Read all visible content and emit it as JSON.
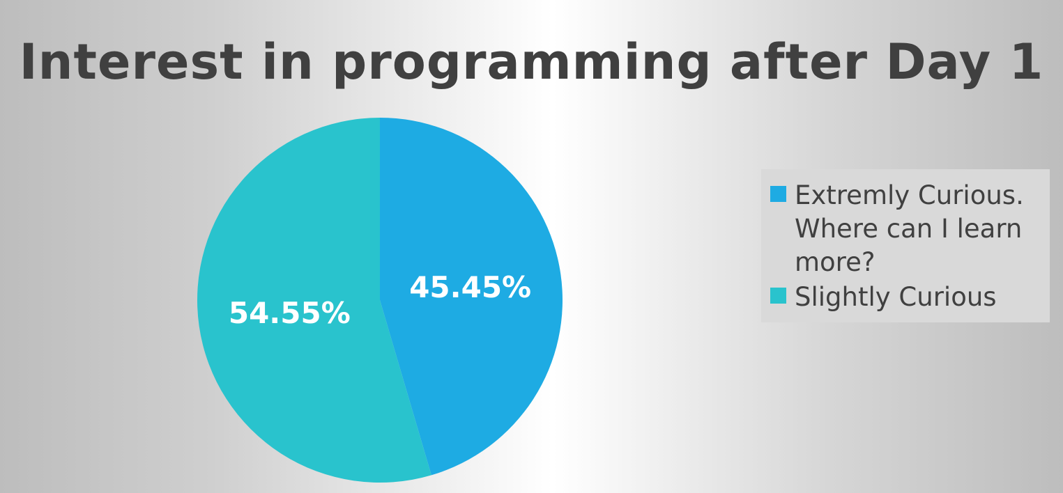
{
  "chart_data": {
    "type": "pie",
    "title": "Interest in programming after Day 1",
    "slices": [
      {
        "label": "Extremly Curious. Where can I learn more?",
        "value": 45.45,
        "data_label": "45.45%",
        "color": "#1eabe3"
      },
      {
        "label": "Slightly Curious",
        "value": 54.55,
        "data_label": "54.55%",
        "color": "#29c3cd"
      }
    ],
    "legend_placement": "right"
  }
}
